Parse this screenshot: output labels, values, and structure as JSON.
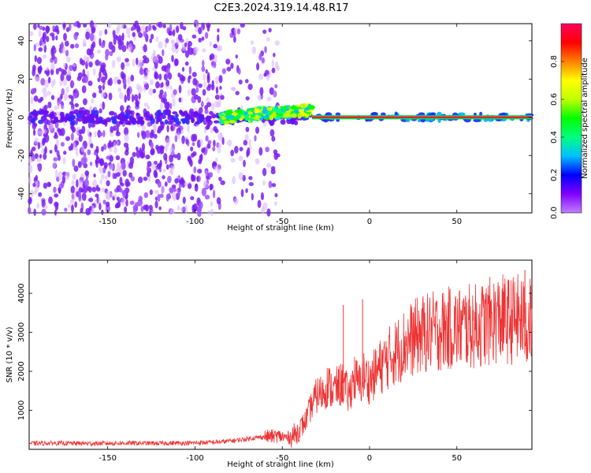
{
  "title": "C2E3.2024.319.14.48.R17",
  "chart_data": [
    {
      "type": "heatmap",
      "title": "C2E3.2024.319.14.48.R17",
      "xlabel": "Height of straight line (km)",
      "ylabel": "Frequency (Hz)",
      "xlim": [
        -195,
        93
      ],
      "ylim": [
        -50,
        49
      ],
      "x_ticks": [
        -150,
        -100,
        -50,
        0,
        50
      ],
      "y_ticks": [
        -40,
        -20,
        0,
        20,
        40
      ],
      "colorbar": {
        "label": "Normalized spectral amplitude",
        "range": [
          0,
          1
        ],
        "ticks": [
          0.0,
          0.2,
          0.4,
          0.6,
          0.8
        ],
        "colormap": [
          "#c080ff",
          "#8000ff",
          "#0000ff",
          "#00c0ff",
          "#00ff80",
          "#00ff00",
          "#c0ff00",
          "#ffff00",
          "#ff8000",
          "#ff0000",
          "#ff0060"
        ]
      },
      "features": {
        "scattered_noise_region_km": [
          -195,
          -52
        ],
        "signal_line_frequency_hz": 0,
        "strong_signal_start_km": -33
      }
    },
    {
      "type": "line",
      "xlabel": "Height of straight line (km)",
      "ylabel": "SNR (10 * v/v)",
      "xlim": [
        -195,
        93
      ],
      "ylim": [
        0,
        4850
      ],
      "x_ticks": [
        -150,
        -100,
        -50,
        0,
        50
      ],
      "y_ticks": [
        1000,
        2000,
        3000,
        4000
      ],
      "color": "#ee3333",
      "x": [
        -195,
        -180,
        -160,
        -140,
        -120,
        -100,
        -85,
        -75,
        -65,
        -58,
        -52,
        -47,
        -42,
        -37,
        -33,
        -30,
        -27,
        -24,
        -21,
        -18,
        -15,
        -12,
        -9,
        -6,
        -3,
        0,
        5,
        10,
        15,
        20,
        25,
        30,
        35,
        40,
        45,
        50,
        55,
        60,
        65,
        70,
        75,
        80,
        85,
        90,
        93
      ],
      "values": [
        150,
        160,
        150,
        160,
        155,
        165,
        190,
        240,
        300,
        330,
        340,
        290,
        400,
        700,
        1150,
        1400,
        1450,
        1650,
        1500,
        1600,
        1700,
        1350,
        1850,
        1650,
        1900,
        1750,
        2050,
        2300,
        2500,
        2700,
        2850,
        2950,
        3000,
        3050,
        3100,
        3100,
        3150,
        3150,
        3200,
        3300,
        3350,
        3300,
        3350,
        3200,
        3300
      ],
      "peak_spikes": [
        [
          -4,
          3850
        ],
        [
          -15,
          3700
        ],
        [
          87,
          4300
        ],
        [
          89,
          4600
        ]
      ]
    }
  ]
}
